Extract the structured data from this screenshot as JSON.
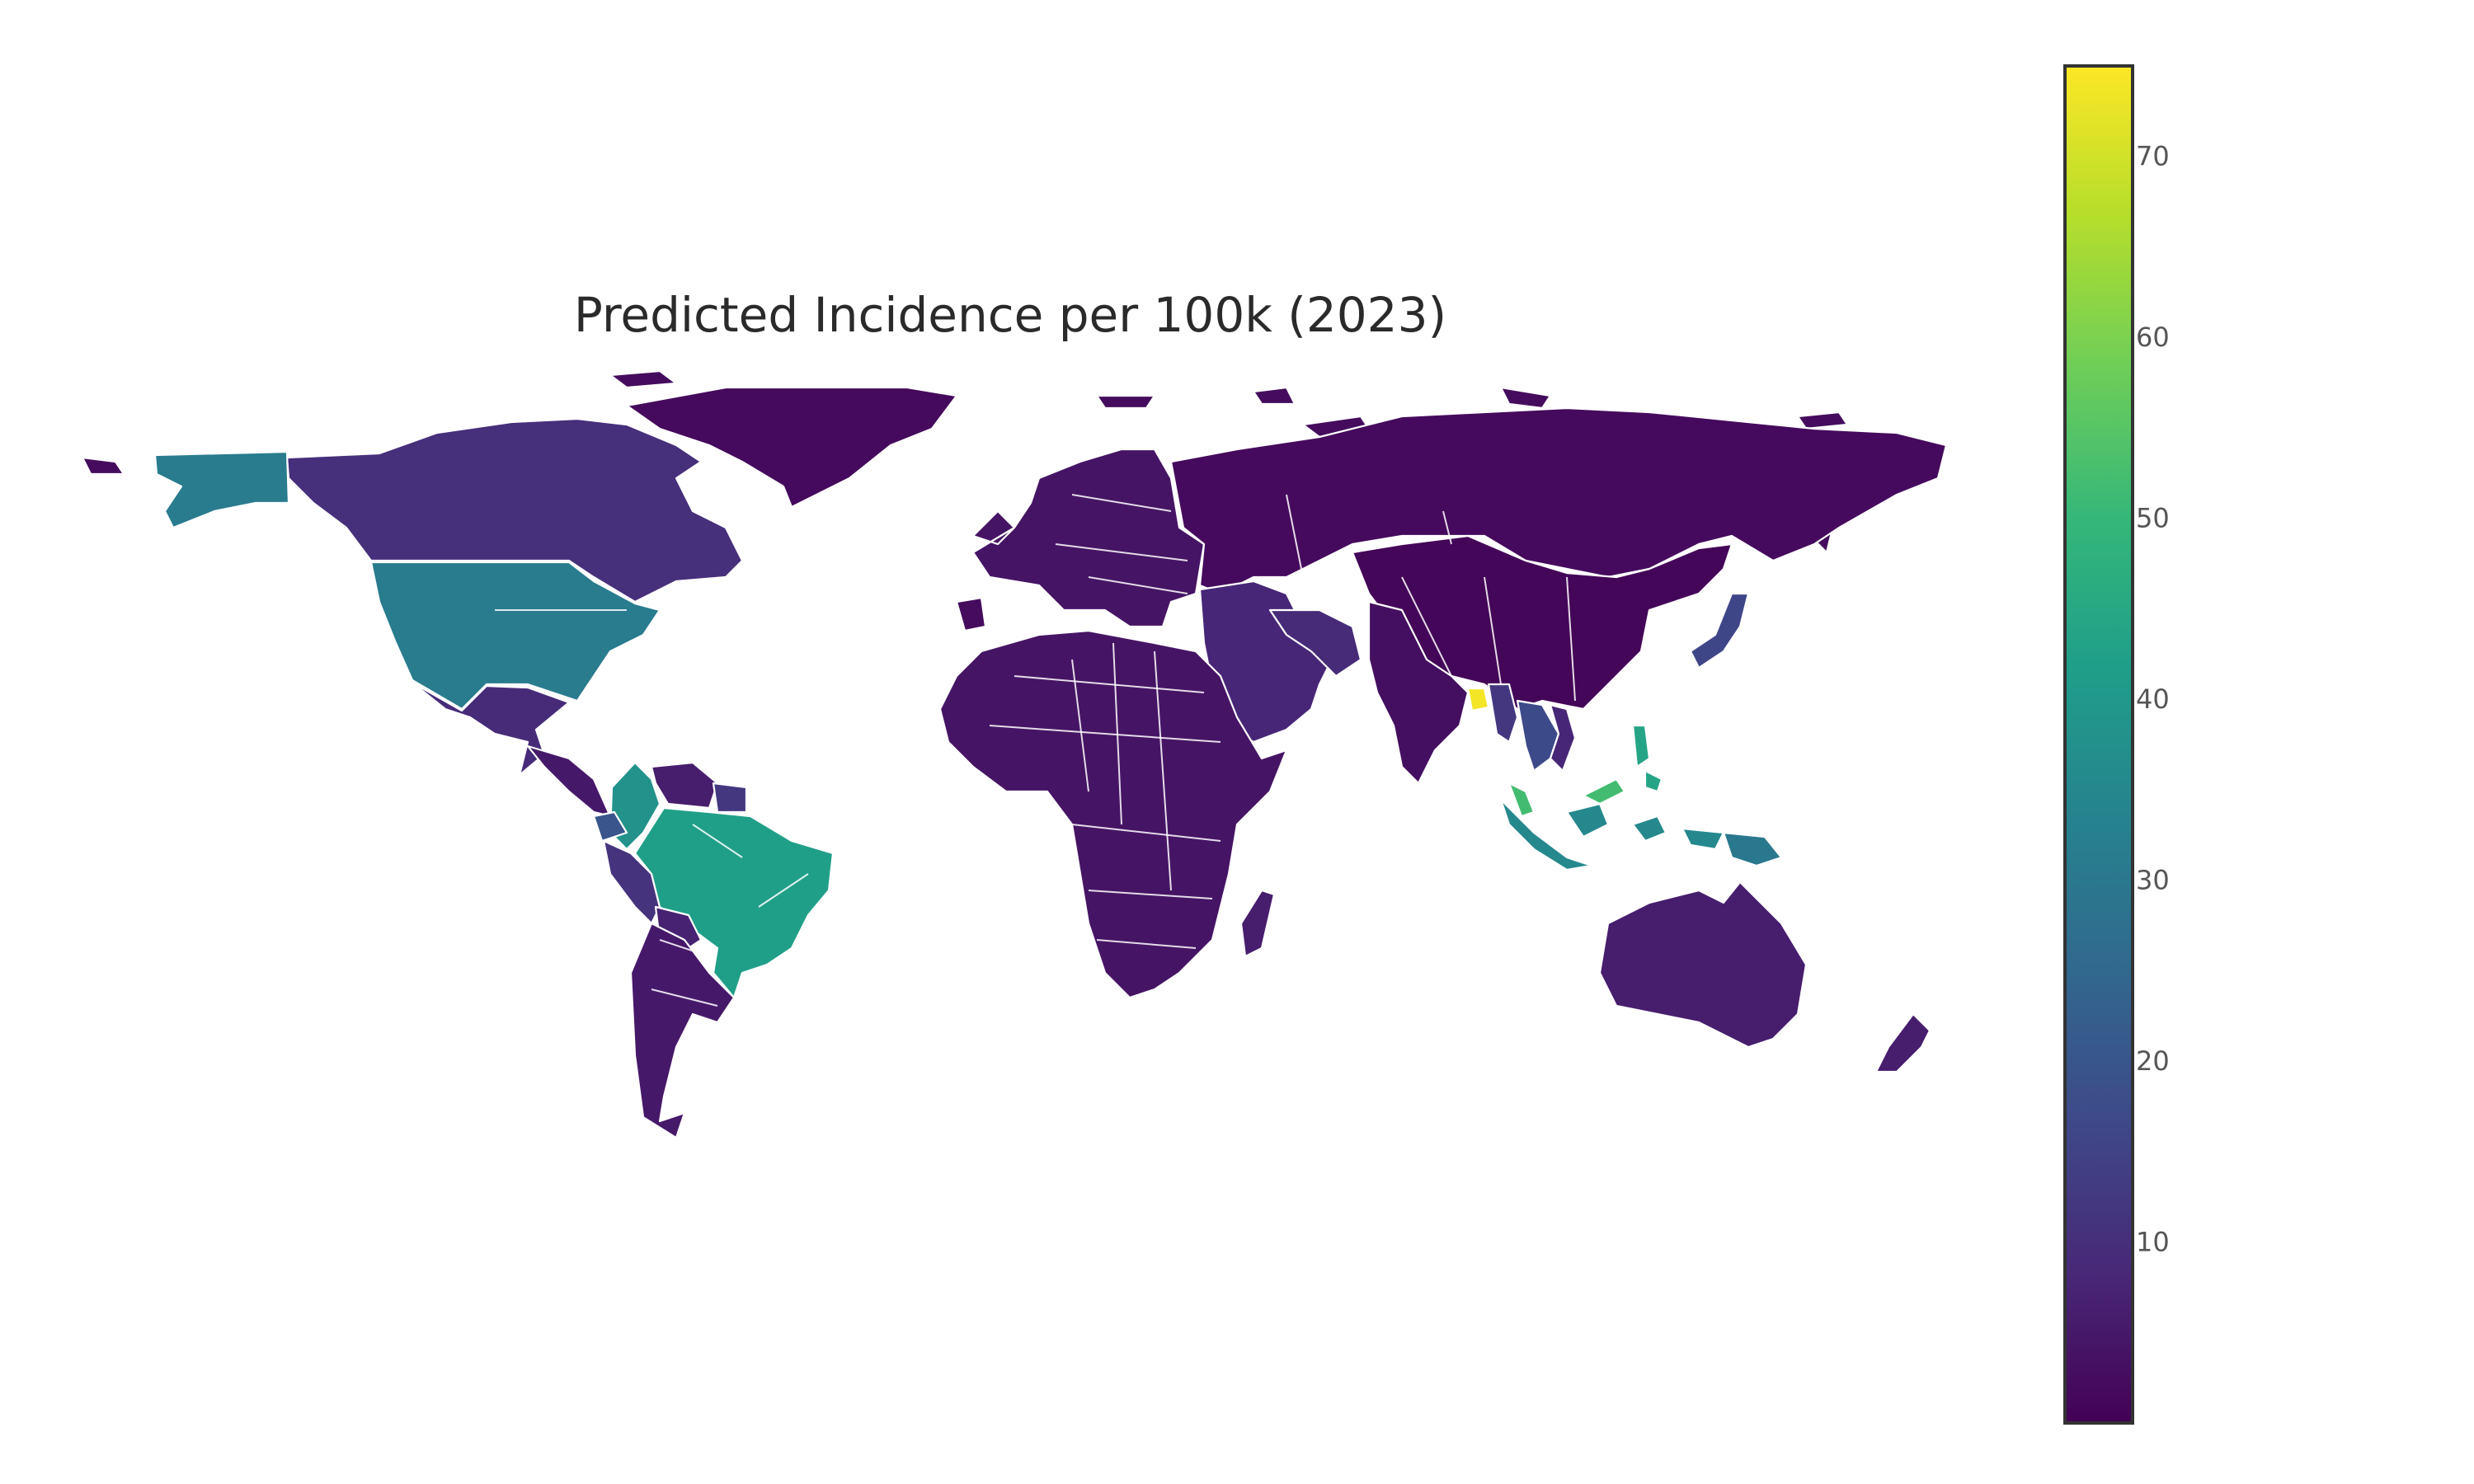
{
  "chart_data": {
    "type": "choropleth",
    "title": "Predicted Incidence per 100k (2023)",
    "colorscale": "Viridis",
    "colorbar": {
      "range": [
        0,
        75
      ],
      "tick_values": [
        10,
        20,
        30,
        40,
        50,
        60,
        70
      ],
      "tick_labels": [
        "10",
        "20",
        "30",
        "40",
        "50",
        "60",
        "70"
      ]
    },
    "colors": {
      "background": "#ffffff",
      "country_border": "#ffffff",
      "coastline": "#c9c9c9",
      "colorbar_outline": "#333333"
    },
    "regions": [
      {
        "name": "Alaska / United States",
        "value": 31
      },
      {
        "name": "Canada",
        "value": 10
      },
      {
        "name": "Greenland",
        "value": 2
      },
      {
        "name": "Mexico",
        "value": 9
      },
      {
        "name": "Central America",
        "value": 5
      },
      {
        "name": "Colombia",
        "value": 38
      },
      {
        "name": "Venezuela",
        "value": 6
      },
      {
        "name": "Guianas",
        "value": 12
      },
      {
        "name": "Ecuador",
        "value": 20
      },
      {
        "name": "Peru",
        "value": 11
      },
      {
        "name": "Brazil",
        "value": 42
      },
      {
        "name": "Bolivia",
        "value": 7
      },
      {
        "name": "Southern Cone",
        "value": 5
      },
      {
        "name": "Europe",
        "value": 4
      },
      {
        "name": "Russia",
        "value": 2
      },
      {
        "name": "Africa",
        "value": 4
      },
      {
        "name": "Middle East",
        "value": 8
      },
      {
        "name": "Iran",
        "value": 9
      },
      {
        "name": "India",
        "value": 3
      },
      {
        "name": "Bangladesh",
        "value": 74
      },
      {
        "name": "China",
        "value": 1
      },
      {
        "name": "Myanmar",
        "value": 12
      },
      {
        "name": "Thailand / Laos / Cambodia",
        "value": 17
      },
      {
        "name": "Vietnam",
        "value": 8
      },
      {
        "name": "Malaysia",
        "value": 52
      },
      {
        "name": "Indonesia",
        "value": 35
      },
      {
        "name": "Philippines",
        "value": 44
      },
      {
        "name": "Japan",
        "value": 16
      },
      {
        "name": "Papua New Guinea",
        "value": 30
      },
      {
        "name": "Australia",
        "value": 6
      },
      {
        "name": "New Zealand",
        "value": 6
      },
      {
        "name": "Madagascar",
        "value": 6
      }
    ]
  }
}
